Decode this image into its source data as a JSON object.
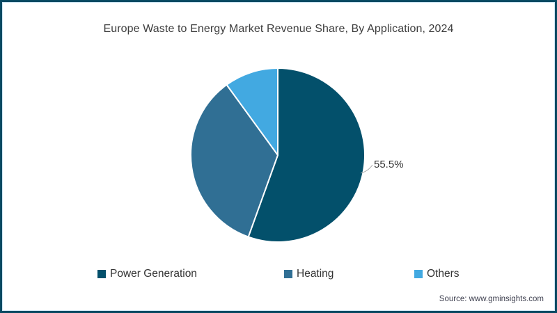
{
  "title": "Europe Waste to Energy Market Revenue Share, By Application, 2024",
  "source": "Source: www.gminsights.com",
  "chart_data": {
    "type": "pie",
    "title": "Europe Waste to Energy Market Revenue Share, By Application, 2024",
    "series": [
      {
        "name": "Power Generation",
        "value": 55.5,
        "color": "#03506b"
      },
      {
        "name": "Heating",
        "value": 34.5,
        "color": "#306f94"
      },
      {
        "name": "Others",
        "value": 10.0,
        "color": "#42a9e1"
      }
    ],
    "data_labels": [
      {
        "slice": "Power Generation",
        "text": "55.5%"
      }
    ],
    "start_angle_deg": 0,
    "direction": "clockwise",
    "legend_position": "bottom",
    "separator_color": "#ffffff",
    "frame_border_color": "#084a63"
  },
  "labels": {
    "power_pct": "55.5%"
  }
}
